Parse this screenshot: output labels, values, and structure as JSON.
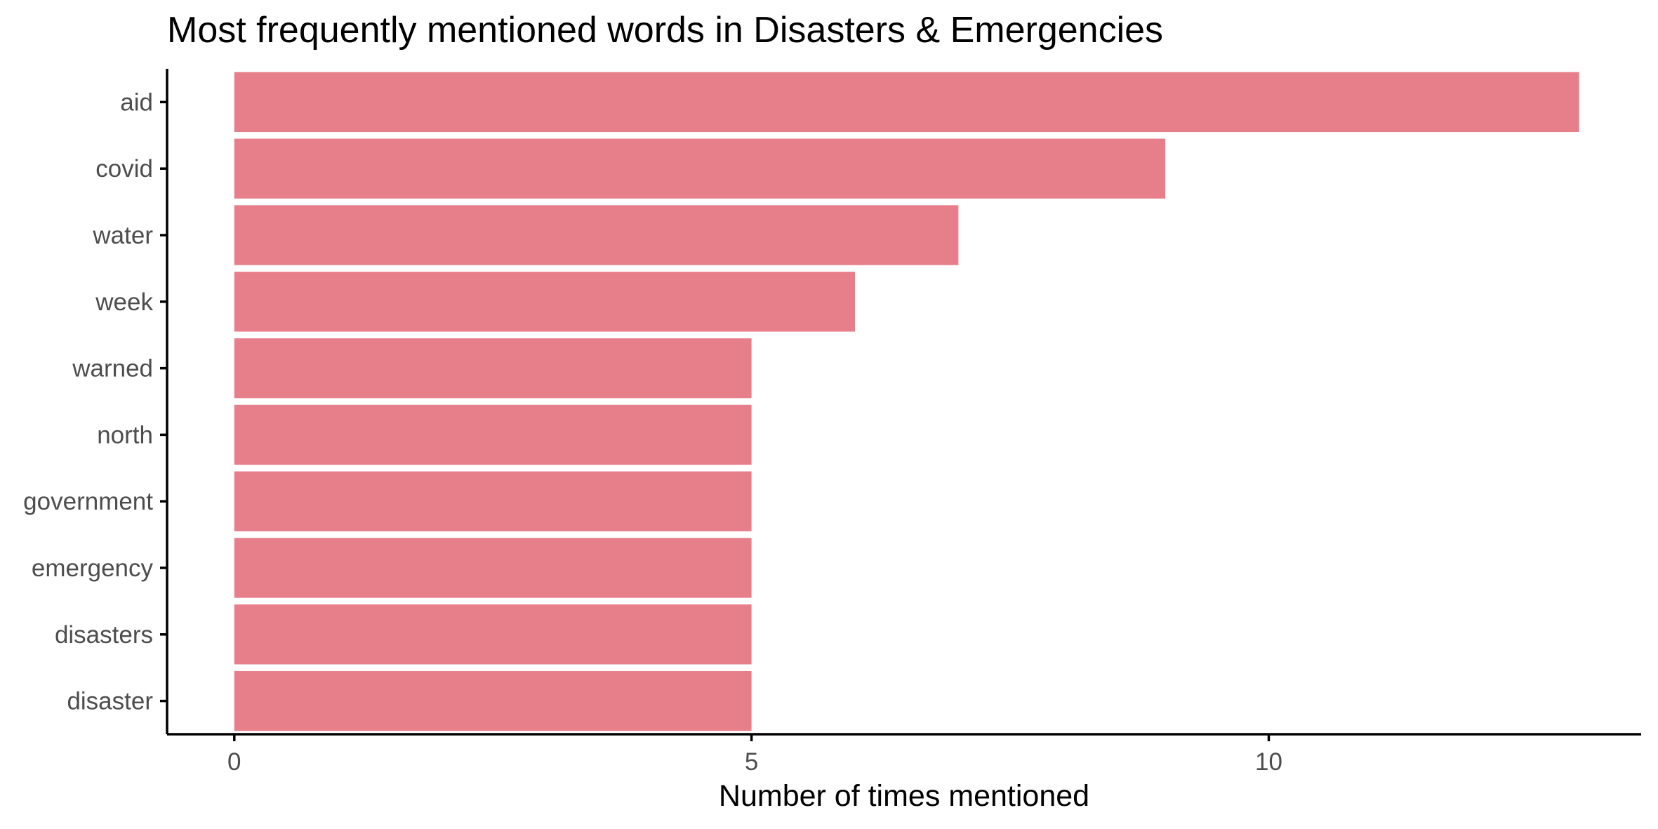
{
  "chart_data": {
    "type": "bar",
    "orientation": "horizontal",
    "title": "Most frequently mentioned words in Disasters & Emergencies",
    "xlabel": "Number of times mentioned",
    "ylabel": "",
    "categories": [
      "aid",
      "covid",
      "water",
      "week",
      "warned",
      "north",
      "government",
      "emergency",
      "disasters",
      "disaster"
    ],
    "values": [
      13,
      9,
      7,
      6,
      5,
      5,
      5,
      5,
      5,
      5
    ],
    "xlim": [
      -0.65,
      13.6
    ],
    "xticks": [
      0,
      5,
      10
    ],
    "bar_color": "#e67f8a",
    "grid": false,
    "legend": "none"
  }
}
